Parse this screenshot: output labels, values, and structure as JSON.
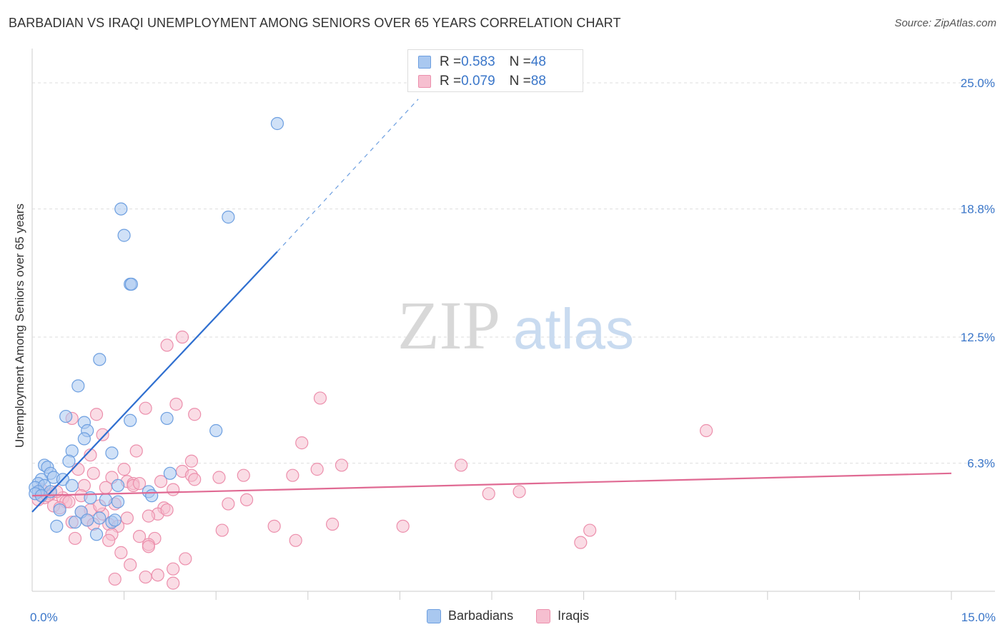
{
  "title": "BARBADIAN VS IRAQI UNEMPLOYMENT AMONG SENIORS OVER 65 YEARS CORRELATION CHART",
  "source": "Source: ZipAtlas.com",
  "watermark": {
    "part1": "ZIP",
    "part2": "atlas"
  },
  "colors": {
    "barbadians_fill": "#a9c8f0",
    "barbadians_stroke": "#6d9fe0",
    "barbadians_line": "#2f6fd0",
    "iraqis_fill": "#f6bfd0",
    "iraqis_stroke": "#ec8fac",
    "iraqis_line": "#e06a93",
    "tick_label": "#3a76c9",
    "grid": "#dddddd"
  },
  "legend": {
    "rows": [
      {
        "series": "Barbadians",
        "r_label": "R = ",
        "r_value": "0.583",
        "n_label": "N = ",
        "n_value": "48"
      },
      {
        "series": "Iraqis",
        "r_label": "R = ",
        "r_value": "0.079",
        "n_label": "N = ",
        "n_value": "88"
      }
    ]
  },
  "bottom_legend": [
    "Barbadians",
    "Iraqis"
  ],
  "chart_data": {
    "type": "scatter",
    "title": "BARBADIAN VS IRAQI UNEMPLOYMENT AMONG SENIORS OVER 65 YEARS CORRELATION CHART",
    "xlabel": "",
    "ylabel": "Unemployment Among Seniors over 65 years",
    "xlim": [
      0,
      15
    ],
    "ylim": [
      0,
      26.3
    ],
    "x_tick_labels": [
      {
        "value": 0,
        "label": "0.0%"
      },
      {
        "value": 15,
        "label": "15.0%"
      }
    ],
    "x_minor_ticks": [
      1.5,
      3.0,
      4.5,
      6.0,
      7.5,
      9.0,
      10.5,
      12.0,
      13.5,
      15.0
    ],
    "y_tick_labels": [
      {
        "value": 6.3,
        "label": "6.3%"
      },
      {
        "value": 12.5,
        "label": "12.5%"
      },
      {
        "value": 18.8,
        "label": "18.8%"
      },
      {
        "value": 25.0,
        "label": "25.0%"
      }
    ],
    "grid": true,
    "series": [
      {
        "name": "Barbadians",
        "R": 0.583,
        "N": 48,
        "trend": {
          "x0": 0.0,
          "y0": 3.9,
          "x1": 4.0,
          "y1": 16.7,
          "dashed_to_x": 6.3,
          "dashed_to_y": 24.2
        },
        "points": [
          [
            4.0,
            23.0
          ],
          [
            1.45,
            18.8
          ],
          [
            1.5,
            17.5
          ],
          [
            3.2,
            18.4
          ],
          [
            1.6,
            15.1
          ],
          [
            1.62,
            15.1
          ],
          [
            1.1,
            11.4
          ],
          [
            0.75,
            10.1
          ],
          [
            0.55,
            8.6
          ],
          [
            1.6,
            8.4
          ],
          [
            2.2,
            8.5
          ],
          [
            3.0,
            7.9
          ],
          [
            0.85,
            8.3
          ],
          [
            0.9,
            7.9
          ],
          [
            0.85,
            7.5
          ],
          [
            0.65,
            6.9
          ],
          [
            1.3,
            6.8
          ],
          [
            0.6,
            6.4
          ],
          [
            0.2,
            6.2
          ],
          [
            0.25,
            6.1
          ],
          [
            0.3,
            5.8
          ],
          [
            0.35,
            5.6
          ],
          [
            0.15,
            5.5
          ],
          [
            0.5,
            5.5
          ],
          [
            2.25,
            5.8
          ],
          [
            0.1,
            5.3
          ],
          [
            0.05,
            5.1
          ],
          [
            0.2,
            5.2
          ],
          [
            0.65,
            5.2
          ],
          [
            1.4,
            5.2
          ],
          [
            0.3,
            4.9
          ],
          [
            0.1,
            4.9
          ],
          [
            0.05,
            4.8
          ],
          [
            0.15,
            4.7
          ],
          [
            1.9,
            4.9
          ],
          [
            1.95,
            4.7
          ],
          [
            0.95,
            4.6
          ],
          [
            1.2,
            4.5
          ],
          [
            1.4,
            4.4
          ],
          [
            0.45,
            4.0
          ],
          [
            0.8,
            3.9
          ],
          [
            0.9,
            3.5
          ],
          [
            1.1,
            3.6
          ],
          [
            0.7,
            3.4
          ],
          [
            1.3,
            3.4
          ],
          [
            1.35,
            3.5
          ],
          [
            0.4,
            3.2
          ],
          [
            1.05,
            2.8
          ]
        ]
      },
      {
        "name": "Iraqis",
        "R": 0.079,
        "N": 88,
        "trend": {
          "x0": 0.0,
          "y0": 4.7,
          "x1": 15.0,
          "y1": 5.8
        },
        "points": [
          [
            2.45,
            12.5
          ],
          [
            2.2,
            12.1
          ],
          [
            4.7,
            9.5
          ],
          [
            2.35,
            9.2
          ],
          [
            1.85,
            9.0
          ],
          [
            1.05,
            8.7
          ],
          [
            2.65,
            8.7
          ],
          [
            0.65,
            8.5
          ],
          [
            1.15,
            7.7
          ],
          [
            11.0,
            7.9
          ],
          [
            4.4,
            7.3
          ],
          [
            1.7,
            6.9
          ],
          [
            0.95,
            6.7
          ],
          [
            2.6,
            6.4
          ],
          [
            7.0,
            6.2
          ],
          [
            5.05,
            6.2
          ],
          [
            4.65,
            6.0
          ],
          [
            0.75,
            6.0
          ],
          [
            1.5,
            6.0
          ],
          [
            2.45,
            5.9
          ],
          [
            1.0,
            5.8
          ],
          [
            2.6,
            5.7
          ],
          [
            3.45,
            5.7
          ],
          [
            4.25,
            5.7
          ],
          [
            2.65,
            5.5
          ],
          [
            1.3,
            5.6
          ],
          [
            1.55,
            5.4
          ],
          [
            1.65,
            5.3
          ],
          [
            2.1,
            5.4
          ],
          [
            1.65,
            5.2
          ],
          [
            0.85,
            5.2
          ],
          [
            1.2,
            5.1
          ],
          [
            2.3,
            5.0
          ],
          [
            7.95,
            4.9
          ],
          [
            7.45,
            4.8
          ],
          [
            0.3,
            4.8
          ],
          [
            0.8,
            4.7
          ],
          [
            0.5,
            4.6
          ],
          [
            0.2,
            4.6
          ],
          [
            0.1,
            4.5
          ],
          [
            0.55,
            4.4
          ],
          [
            3.5,
            4.5
          ],
          [
            3.2,
            4.3
          ],
          [
            1.35,
            4.3
          ],
          [
            0.35,
            4.2
          ],
          [
            2.15,
            4.1
          ],
          [
            0.95,
            4.0
          ],
          [
            0.8,
            3.9
          ],
          [
            1.15,
            3.8
          ],
          [
            2.05,
            3.8
          ],
          [
            1.9,
            3.7
          ],
          [
            1.55,
            3.6
          ],
          [
            0.9,
            3.5
          ],
          [
            0.65,
            3.4
          ],
          [
            1.25,
            3.3
          ],
          [
            1.4,
            3.2
          ],
          [
            1.0,
            3.3
          ],
          [
            4.9,
            3.3
          ],
          [
            6.05,
            3.2
          ],
          [
            3.95,
            3.2
          ],
          [
            3.1,
            3.0
          ],
          [
            9.1,
            3.0
          ],
          [
            1.3,
            2.8
          ],
          [
            1.75,
            2.7
          ],
          [
            2.0,
            2.6
          ],
          [
            4.3,
            2.5
          ],
          [
            1.25,
            2.5
          ],
          [
            8.95,
            2.4
          ],
          [
            1.9,
            2.3
          ],
          [
            1.45,
            1.9
          ],
          [
            2.5,
            1.6
          ],
          [
            1.6,
            1.3
          ],
          [
            2.3,
            1.1
          ],
          [
            1.35,
            0.6
          ],
          [
            1.85,
            0.7
          ],
          [
            2.05,
            0.8
          ],
          [
            2.3,
            0.4
          ],
          [
            0.25,
            4.7
          ],
          [
            0.4,
            4.9
          ],
          [
            0.15,
            5.0
          ],
          [
            0.6,
            4.4
          ],
          [
            2.2,
            4.0
          ],
          [
            1.9,
            2.2
          ],
          [
            0.7,
            2.6
          ],
          [
            3.05,
            5.6
          ],
          [
            1.75,
            5.3
          ],
          [
            0.45,
            4.1
          ],
          [
            1.1,
            4.2
          ]
        ]
      }
    ]
  }
}
